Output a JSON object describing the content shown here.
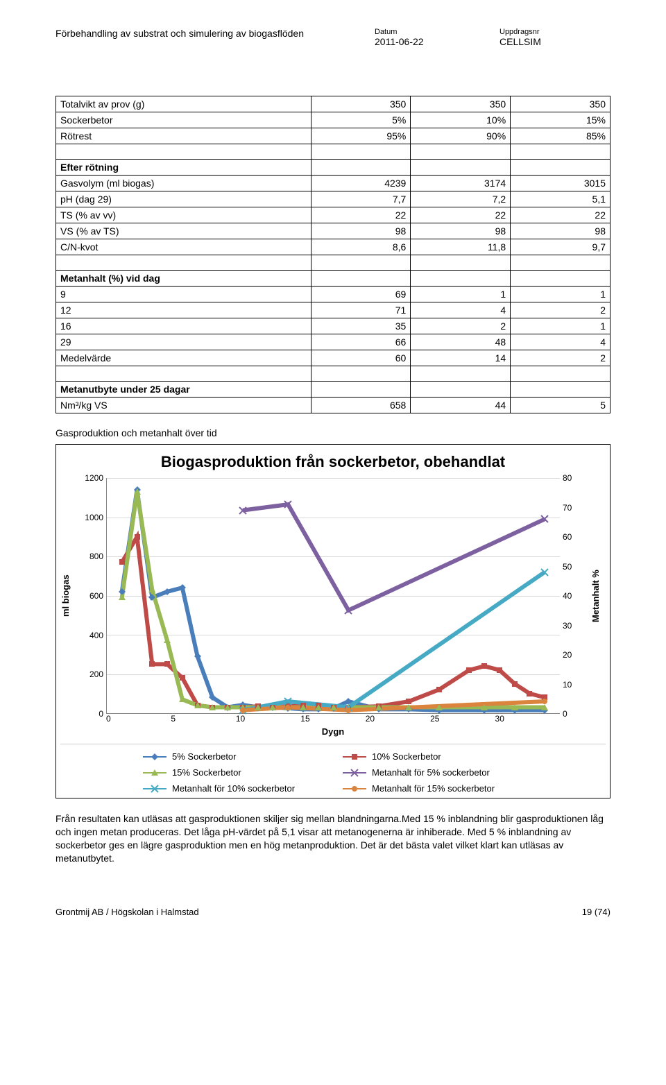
{
  "header": {
    "title": "Förbehandling av substrat och simulering av biogasflöden",
    "date_label": "Datum",
    "date_value": "2011-06-22",
    "job_label": "Uppdragsnr",
    "job_value": "CELLSIM"
  },
  "table": {
    "rows": [
      {
        "label": "Totalvikt av prov (g)",
        "c1": "350",
        "c2": "350",
        "c3": "350"
      },
      {
        "label": "Sockerbetor",
        "c1": "5%",
        "c2": "10%",
        "c3": "15%"
      },
      {
        "label": "Rötrest",
        "c1": "95%",
        "c2": "90%",
        "c3": "85%"
      },
      {
        "label": "",
        "c1": "",
        "c2": "",
        "c3": ""
      },
      {
        "label": "Efter rötning",
        "bold": true,
        "c1": "",
        "c2": "",
        "c3": ""
      },
      {
        "label": "Gasvolym (ml biogas)",
        "c1": "4239",
        "c2": "3174",
        "c3": "3015"
      },
      {
        "label": "pH (dag 29)",
        "c1": "7,7",
        "c2": "7,2",
        "c3": "5,1"
      },
      {
        "label": "TS (% av vv)",
        "c1": "22",
        "c2": "22",
        "c3": "22"
      },
      {
        "label": "VS (% av TS)",
        "c1": "98",
        "c2": "98",
        "c3": "98"
      },
      {
        "label": "C/N-kvot",
        "c1": "8,6",
        "c2": "11,8",
        "c3": "9,7"
      },
      {
        "label": "",
        "c1": "",
        "c2": "",
        "c3": ""
      },
      {
        "label": "Metanhalt (%) vid dag",
        "bold": true,
        "c1": "",
        "c2": "",
        "c3": ""
      },
      {
        "label": "9",
        "c1": "69",
        "c2": "1",
        "c3": "1"
      },
      {
        "label": "12",
        "c1": "71",
        "c2": "4",
        "c3": "2"
      },
      {
        "label": "16",
        "c1": "35",
        "c2": "2",
        "c3": "1"
      },
      {
        "label": "29",
        "c1": "66",
        "c2": "48",
        "c3": "4"
      },
      {
        "label": "Medelvärde",
        "c1": "60",
        "c2": "14",
        "c3": "2"
      },
      {
        "label": "",
        "c1": "",
        "c2": "",
        "c3": ""
      },
      {
        "label": "Metanutbyte under 25 dagar",
        "bold": true,
        "c1": "",
        "c2": "",
        "c3": ""
      },
      {
        "label": "Nm³/kg VS",
        "c1": "658",
        "c2": "44",
        "c3": "5"
      }
    ]
  },
  "chart_caption": "Gasproduktion och metanhalt över tid",
  "chart": {
    "type": "line",
    "title": "Biogasproduktion från sockerbetor, obehandlat",
    "xlabel": "Dygn",
    "ylabel_left": "ml biogas",
    "ylabel_right": "Metanhalt %",
    "xlim": [
      0,
      30
    ],
    "ylim_left": [
      0,
      1200
    ],
    "ylim_right": [
      0,
      80
    ],
    "xtick_step": 5,
    "ytick_left_step": 200,
    "ytick_right_step": 10,
    "background_color": "#ffffff",
    "grid_color": "#d9d9d9",
    "series": [
      {
        "name": "5% Sockerbetor",
        "axis": "left",
        "color": "#4a7ebb",
        "marker": "diamond",
        "points": [
          [
            1,
            620
          ],
          [
            2,
            1140
          ],
          [
            3,
            590
          ],
          [
            4,
            620
          ],
          [
            5,
            640
          ],
          [
            6,
            290
          ],
          [
            7,
            80
          ],
          [
            8,
            30
          ],
          [
            9,
            42
          ],
          [
            10,
            30
          ],
          [
            11,
            30
          ],
          [
            12,
            25
          ],
          [
            13,
            20
          ],
          [
            14,
            20
          ],
          [
            15,
            25
          ],
          [
            16,
            60
          ],
          [
            18,
            20
          ],
          [
            20,
            20
          ],
          [
            22,
            15
          ],
          [
            25,
            15
          ],
          [
            27,
            15
          ],
          [
            29,
            15
          ]
        ]
      },
      {
        "name": "10% Sockerbetor",
        "axis": "left",
        "color": "#be4b48",
        "marker": "square",
        "points": [
          [
            1,
            770
          ],
          [
            2,
            900
          ],
          [
            3,
            250
          ],
          [
            4,
            250
          ],
          [
            5,
            180
          ],
          [
            6,
            40
          ],
          [
            7,
            30
          ],
          [
            8,
            30
          ],
          [
            9,
            30
          ],
          [
            10,
            35
          ],
          [
            11,
            30
          ],
          [
            12,
            35
          ],
          [
            13,
            40
          ],
          [
            14,
            40
          ],
          [
            15,
            30
          ],
          [
            16,
            30
          ],
          [
            18,
            35
          ],
          [
            20,
            60
          ],
          [
            22,
            120
          ],
          [
            24,
            220
          ],
          [
            25,
            240
          ],
          [
            26,
            220
          ],
          [
            27,
            150
          ],
          [
            28,
            100
          ],
          [
            29,
            80
          ]
        ]
      },
      {
        "name": "15% Sockerbetor",
        "axis": "left",
        "color": "#98b954",
        "marker": "triangle",
        "points": [
          [
            1,
            590
          ],
          [
            2,
            1130
          ],
          [
            3,
            630
          ],
          [
            4,
            370
          ],
          [
            5,
            70
          ],
          [
            6,
            40
          ],
          [
            7,
            30
          ],
          [
            8,
            30
          ],
          [
            9,
            30
          ],
          [
            10,
            30
          ],
          [
            11,
            30
          ],
          [
            12,
            30
          ],
          [
            13,
            30
          ],
          [
            14,
            30
          ],
          [
            15,
            30
          ],
          [
            16,
            30
          ],
          [
            18,
            30
          ],
          [
            20,
            30
          ],
          [
            22,
            30
          ],
          [
            25,
            30
          ],
          [
            27,
            30
          ],
          [
            29,
            30
          ]
        ]
      },
      {
        "name": "Metanhalt för 5% sockerbetor",
        "axis": "right",
        "color": "#7d60a0",
        "marker": "x",
        "points": [
          [
            9,
            69
          ],
          [
            12,
            71
          ],
          [
            16,
            35
          ],
          [
            29,
            66
          ]
        ]
      },
      {
        "name": "Metanhalt för 10% sockerbetor",
        "axis": "right",
        "color": "#46aac5",
        "marker": "x",
        "points": [
          [
            9,
            1
          ],
          [
            12,
            4
          ],
          [
            16,
            2
          ],
          [
            29,
            48
          ]
        ]
      },
      {
        "name": "Metanhalt för 15% sockerbetor",
        "axis": "right",
        "color": "#db843d",
        "marker": "circle",
        "points": [
          [
            9,
            1
          ],
          [
            12,
            2
          ],
          [
            16,
            1
          ],
          [
            29,
            4
          ]
        ]
      }
    ]
  },
  "paragraph": "Från resultaten kan utläsas att gasproduktionen skiljer sig mellan blandningarna.Med 15 % inblandning blir gasproduktionen låg och ingen metan produceras. Det låga pH-värdet på 5,1 visar att metanogenerna är inhiberade. Med 5 % inblandning av sockerbetor ges en lägre gasproduktion men en hög metanproduktion. Det är det bästa valet vilket klart kan utläsas av metanutbytet.",
  "footer": {
    "left": "Grontmij AB / Högskolan i Halmstad",
    "right": "19 (74)"
  }
}
